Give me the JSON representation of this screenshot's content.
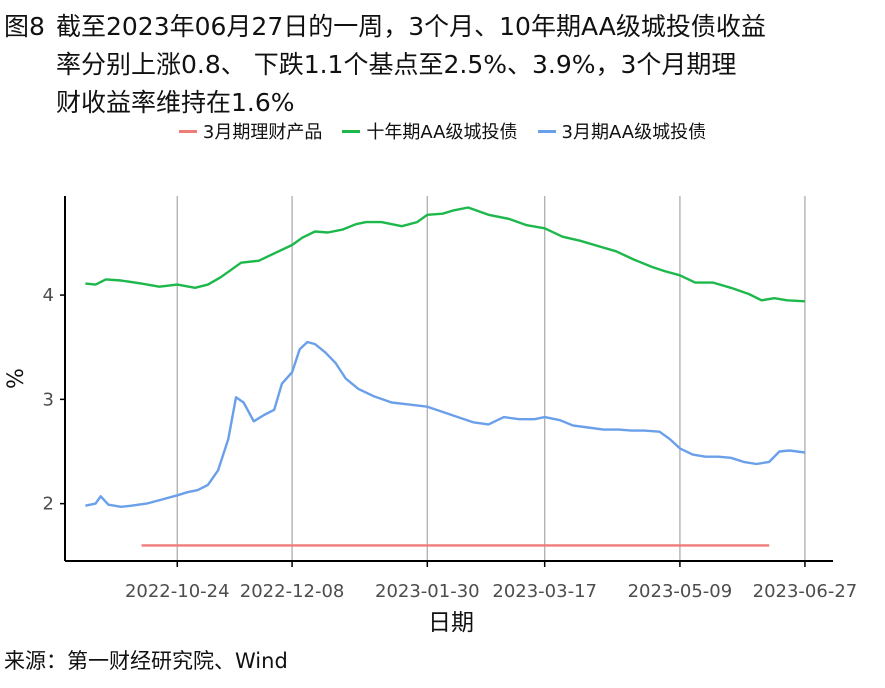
{
  "figure": {
    "label": "图8",
    "title": "截至2023年06月27日的一周，3个月、10年期AA级城投债收益率分别上涨0.8、 下跌1.1个基点至2.5%、3.9%，3个月期理财收益率维持在1.6%",
    "title_lines": [
      "截至2023年06月27日的一周，3个月、10年期AA级城投债收益",
      "率分别上涨0.8、 下跌1.1个基点至2.5%、3.9%，3个月期理",
      "财收益率维持在1.6%"
    ],
    "source": "来源：第一财经研究院、Wind"
  },
  "colors": {
    "wealth": "#F07C78",
    "ten_year": "#1DB84B",
    "three_month": "#6A9FEA",
    "grid": "#B3B3B3",
    "axis": "#000000"
  },
  "chart_data": {
    "type": "line",
    "xlabel": "日期",
    "ylabel": "%",
    "x_ticks": [
      "2022-10-24",
      "2022-12-08",
      "2023-01-30",
      "2023-03-17",
      "2023-05-09",
      "2023-06-27"
    ],
    "y_ticks": [
      2,
      3,
      4
    ],
    "xlim": [
      "2022-09-10",
      "2023-07-08"
    ],
    "ylim": [
      1.45,
      4.95
    ],
    "grid": "vertical lines at x ticks",
    "legend": "top",
    "series": [
      {
        "name": "3月期理财产品",
        "color_key": "wealth",
        "x": [
          "2022-10-10",
          "2023-06-13"
        ],
        "values": [
          1.6,
          1.6
        ]
      },
      {
        "name": "十年期AA级城投债",
        "color_key": "ten_year",
        "x": [
          "2022-09-18",
          "2022-09-22",
          "2022-09-26",
          "2022-10-02",
          "2022-10-10",
          "2022-10-17",
          "2022-10-24",
          "2022-10-31",
          "2022-11-05",
          "2022-11-10",
          "2022-11-18",
          "2022-11-25",
          "2022-12-01",
          "2022-12-08",
          "2022-12-12",
          "2022-12-17",
          "2022-12-22",
          "2022-12-28",
          "2023-01-02",
          "2023-01-06",
          "2023-01-12",
          "2023-01-20",
          "2023-01-26",
          "2023-01-30",
          "2023-02-05",
          "2023-02-09",
          "2023-02-15",
          "2023-02-23",
          "2023-03-03",
          "2023-03-10",
          "2023-03-17",
          "2023-03-24",
          "2023-03-31",
          "2023-04-07",
          "2023-04-14",
          "2023-04-21",
          "2023-04-28",
          "2023-05-03",
          "2023-05-09",
          "2023-05-15",
          "2023-05-22",
          "2023-05-29",
          "2023-06-05",
          "2023-06-10",
          "2023-06-15",
          "2023-06-20",
          "2023-06-27"
        ],
        "values": [
          4.11,
          4.1,
          4.15,
          4.14,
          4.11,
          4.08,
          4.1,
          4.07,
          4.1,
          4.17,
          4.31,
          4.33,
          4.4,
          4.48,
          4.55,
          4.61,
          4.6,
          4.63,
          4.68,
          4.7,
          4.7,
          4.66,
          4.7,
          4.77,
          4.78,
          4.81,
          4.84,
          4.77,
          4.73,
          4.67,
          4.64,
          4.56,
          4.52,
          4.47,
          4.42,
          4.34,
          4.27,
          4.23,
          4.19,
          4.12,
          4.12,
          4.07,
          4.01,
          3.95,
          3.97,
          3.95,
          3.94
        ]
      },
      {
        "name": "3月期AA级城投债",
        "color_key": "three_month",
        "x": [
          "2022-09-18",
          "2022-09-22",
          "2022-09-24",
          "2022-09-27",
          "2022-10-02",
          "2022-10-06",
          "2022-10-12",
          "2022-10-18",
          "2022-10-24",
          "2022-10-28",
          "2022-11-01",
          "2022-11-05",
          "2022-11-09",
          "2022-11-13",
          "2022-11-16",
          "2022-11-19",
          "2022-11-23",
          "2022-11-27",
          "2022-12-01",
          "2022-12-04",
          "2022-12-08",
          "2022-12-11",
          "2022-12-14",
          "2022-12-17",
          "2022-12-21",
          "2022-12-25",
          "2022-12-29",
          "2023-01-03",
          "2023-01-09",
          "2023-01-16",
          "2023-01-23",
          "2023-01-30",
          "2023-02-05",
          "2023-02-11",
          "2023-02-17",
          "2023-02-23",
          "2023-03-01",
          "2023-03-07",
          "2023-03-13",
          "2023-03-17",
          "2023-03-23",
          "2023-03-28",
          "2023-04-03",
          "2023-04-09",
          "2023-04-15",
          "2023-04-20",
          "2023-04-25",
          "2023-05-01",
          "2023-05-05",
          "2023-05-09",
          "2023-05-14",
          "2023-05-19",
          "2023-05-24",
          "2023-05-29",
          "2023-06-03",
          "2023-06-08",
          "2023-06-13",
          "2023-06-17",
          "2023-06-21",
          "2023-06-27"
        ],
        "values": [
          1.98,
          2.0,
          2.07,
          1.99,
          1.97,
          1.98,
          2.0,
          2.04,
          2.08,
          2.11,
          2.13,
          2.18,
          2.32,
          2.62,
          3.02,
          2.97,
          2.79,
          2.85,
          2.9,
          3.15,
          3.26,
          3.48,
          3.55,
          3.53,
          3.45,
          3.35,
          3.2,
          3.1,
          3.03,
          2.97,
          2.95,
          2.93,
          2.88,
          2.83,
          2.78,
          2.76,
          2.83,
          2.81,
          2.81,
          2.83,
          2.8,
          2.75,
          2.73,
          2.71,
          2.71,
          2.7,
          2.7,
          2.69,
          2.62,
          2.53,
          2.47,
          2.45,
          2.45,
          2.44,
          2.4,
          2.38,
          2.4,
          2.5,
          2.51,
          2.49
        ]
      }
    ]
  }
}
